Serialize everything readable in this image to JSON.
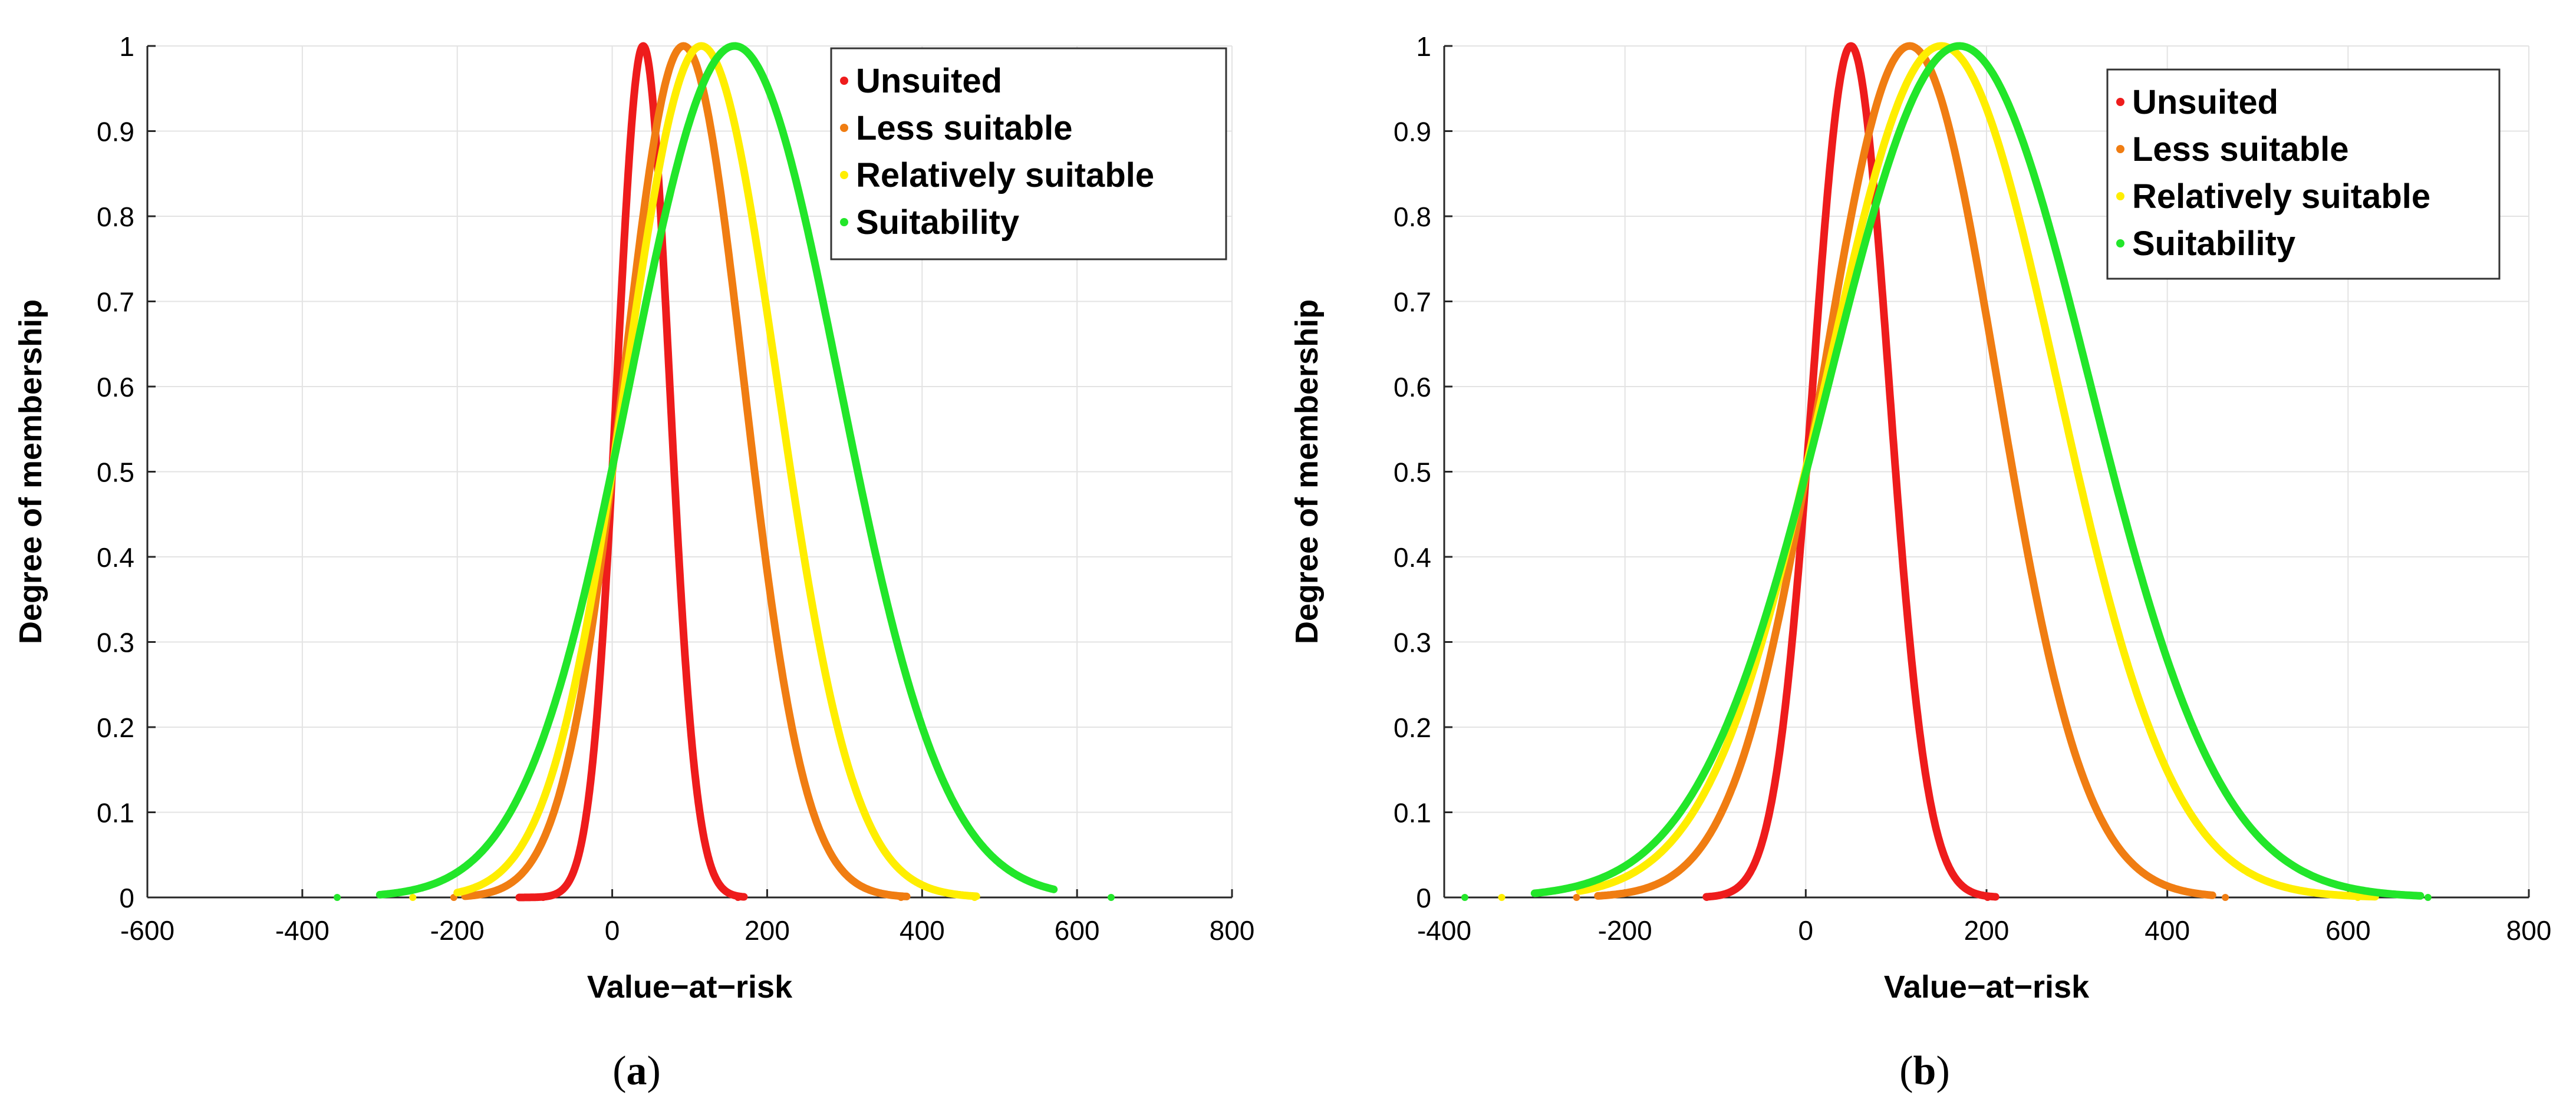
{
  "chart_data": [
    {
      "type": "line",
      "panel_label": "a",
      "xlabel": "Value−at−risk",
      "ylabel": "Degree of membership",
      "xlim": [
        -600,
        800
      ],
      "ylim": [
        0,
        1
      ],
      "xticks": [
        "-600",
        "-400",
        "-200",
        "0",
        "200",
        "400",
        "600",
        "800"
      ],
      "yticks": [
        "0",
        "0.1",
        "0.2",
        "0.3",
        "0.4",
        "0.5",
        "0.6",
        "0.7",
        "0.8",
        "0.9",
        "1"
      ],
      "grid": true,
      "legend_position": "top-right",
      "series": [
        {
          "name": "Unsuited",
          "color": "#ee1c1c",
          "mean": 40,
          "sigma": 34,
          "xmin": -120,
          "xmax": 170
        },
        {
          "name": "Less suitable",
          "color": "#f07d12",
          "mean": 92,
          "sigma": 78,
          "xmin": -190,
          "xmax": 380
        },
        {
          "name": "Relatively suitable",
          "color": "#ffee00",
          "mean": 115,
          "sigma": 98,
          "xmin": -200,
          "xmax": 470
        },
        {
          "name": "Suitability",
          "color": "#22e62a",
          "mean": 158,
          "sigma": 135,
          "xmin": -300,
          "xmax": 570
        }
      ]
    },
    {
      "type": "line",
      "panel_label": "b",
      "xlabel": "Value−at−risk",
      "ylabel": "Degree of membership",
      "xlim": [
        -400,
        800
      ],
      "ylim": [
        0,
        1
      ],
      "xticks": [
        "-400",
        "-200",
        "0",
        "200",
        "400",
        "600",
        "800"
      ],
      "yticks": [
        "0",
        "0.1",
        "0.2",
        "0.3",
        "0.4",
        "0.5",
        "0.6",
        "0.7",
        "0.8",
        "0.9",
        "1"
      ],
      "grid": true,
      "legend_position": "top-right",
      "series": [
        {
          "name": "Unsuited",
          "color": "#ee1c1c",
          "mean": 50,
          "sigma": 42,
          "xmin": -110,
          "xmax": 210
        },
        {
          "name": "Less suitable",
          "color": "#f07d12",
          "mean": 115,
          "sigma": 97,
          "xmin": -230,
          "xmax": 450
        },
        {
          "name": "Relatively suitable",
          "color": "#ffee00",
          "mean": 150,
          "sigma": 128,
          "xmin": -250,
          "xmax": 630
        },
        {
          "name": "Suitability",
          "color": "#22e62a",
          "mean": 170,
          "sigma": 144,
          "xmin": -300,
          "xmax": 680
        }
      ]
    }
  ]
}
